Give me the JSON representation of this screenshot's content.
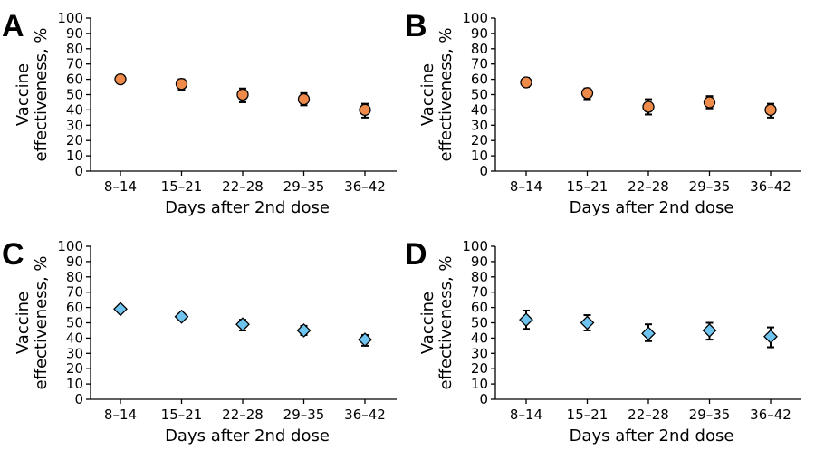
{
  "chart_data": [
    {
      "panel": "A",
      "type": "scatter",
      "marker": "circle",
      "color": "#ee8a4a",
      "categories": [
        "8–14",
        "15–21",
        "22–28",
        "29–35",
        "36–42"
      ],
      "values": [
        60,
        57,
        50,
        47,
        40
      ],
      "ci_lower": [
        58,
        53,
        45,
        43,
        35
      ],
      "ci_upper": [
        62,
        60,
        54,
        51,
        44
      ],
      "xlabel": "Days after 2nd dose",
      "ylabel": [
        "Vaccine",
        "effectiveness, %"
      ],
      "ylim": [
        0,
        100
      ],
      "yticks": [
        0,
        10,
        20,
        30,
        40,
        50,
        60,
        70,
        80,
        90,
        100
      ]
    },
    {
      "panel": "B",
      "type": "scatter",
      "marker": "circle",
      "color": "#ee8a4a",
      "categories": [
        "8–14",
        "15–21",
        "22–28",
        "29–35",
        "36–42"
      ],
      "values": [
        58,
        51,
        42,
        45,
        40
      ],
      "ci_lower": [
        55,
        47,
        37,
        41,
        35
      ],
      "ci_upper": [
        61,
        54,
        47,
        49,
        44
      ],
      "xlabel": "Days after 2nd dose",
      "ylabel": [
        "Vaccine",
        "effectiveness, %"
      ],
      "ylim": [
        0,
        100
      ],
      "yticks": [
        0,
        10,
        20,
        30,
        40,
        50,
        60,
        70,
        80,
        90,
        100
      ]
    },
    {
      "panel": "C",
      "type": "scatter",
      "marker": "diamond",
      "color": "#6ec4ee",
      "categories": [
        "8–14",
        "15–21",
        "22–28",
        "29–35",
        "36–42"
      ],
      "values": [
        59,
        54,
        49,
        45,
        39
      ],
      "ci_lower": [
        58,
        52,
        45,
        42,
        35
      ],
      "ci_upper": [
        60,
        56,
        52,
        48,
        42
      ],
      "xlabel": "Days after 2nd dose",
      "ylabel": [
        "Vaccine",
        "effectiveness, %"
      ],
      "ylim": [
        0,
        100
      ],
      "yticks": [
        0,
        10,
        20,
        30,
        40,
        50,
        60,
        70,
        80,
        90,
        100
      ]
    },
    {
      "panel": "D",
      "type": "scatter",
      "marker": "diamond",
      "color": "#6ec4ee",
      "categories": [
        "8–14",
        "15–21",
        "22–28",
        "29–35",
        "36–42"
      ],
      "values": [
        52,
        50,
        43,
        45,
        41
      ],
      "ci_lower": [
        46,
        45,
        38,
        39,
        34
      ],
      "ci_upper": [
        58,
        55,
        49,
        50,
        47
      ],
      "xlabel": "Days after 2nd dose",
      "ylabel": [
        "Vaccine",
        "effectiveness, %"
      ],
      "ylim": [
        0,
        100
      ],
      "yticks": [
        0,
        10,
        20,
        30,
        40,
        50,
        60,
        70,
        80,
        90,
        100
      ]
    }
  ]
}
